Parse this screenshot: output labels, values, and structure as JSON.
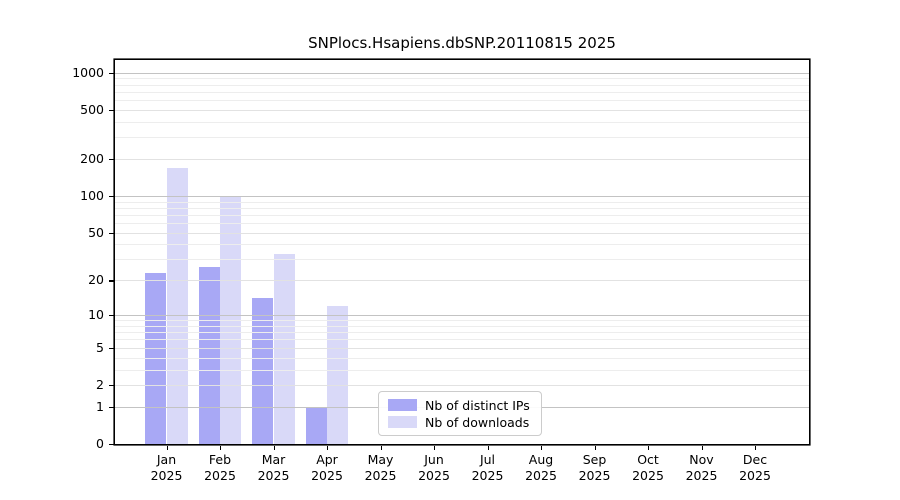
{
  "chart_data": {
    "type": "bar",
    "title": "SNPlocs.Hsapiens.dbSNP.20110815 2025",
    "year_label": "2025",
    "categories": [
      "Jan",
      "Feb",
      "Mar",
      "Apr",
      "May",
      "Jun",
      "Jul",
      "Aug",
      "Sep",
      "Oct",
      "Nov",
      "Dec"
    ],
    "series": [
      {
        "name": "Nb of distinct IPs",
        "color": "#a8a8f5",
        "values": [
          23,
          26,
          14,
          1,
          0,
          0,
          0,
          0,
          0,
          0,
          0,
          0
        ]
      },
      {
        "name": "Nb of downloads",
        "color": "#d9d9f8",
        "values": [
          170,
          100,
          33,
          12,
          0,
          0,
          0,
          0,
          0,
          0,
          0,
          0
        ]
      }
    ],
    "yticks": [
      0,
      1,
      2,
      5,
      10,
      20,
      50,
      100,
      200,
      500,
      1000
    ],
    "yscale": "log1p",
    "ylim": [
      0,
      1280
    ],
    "xlabel": "",
    "ylabel": "",
    "grid": "on",
    "grid_colors": {
      "decade": "#c3c3c3",
      "labeled": "#e2e2e2",
      "minor": "#ededed"
    },
    "legend_position": "lower center"
  }
}
